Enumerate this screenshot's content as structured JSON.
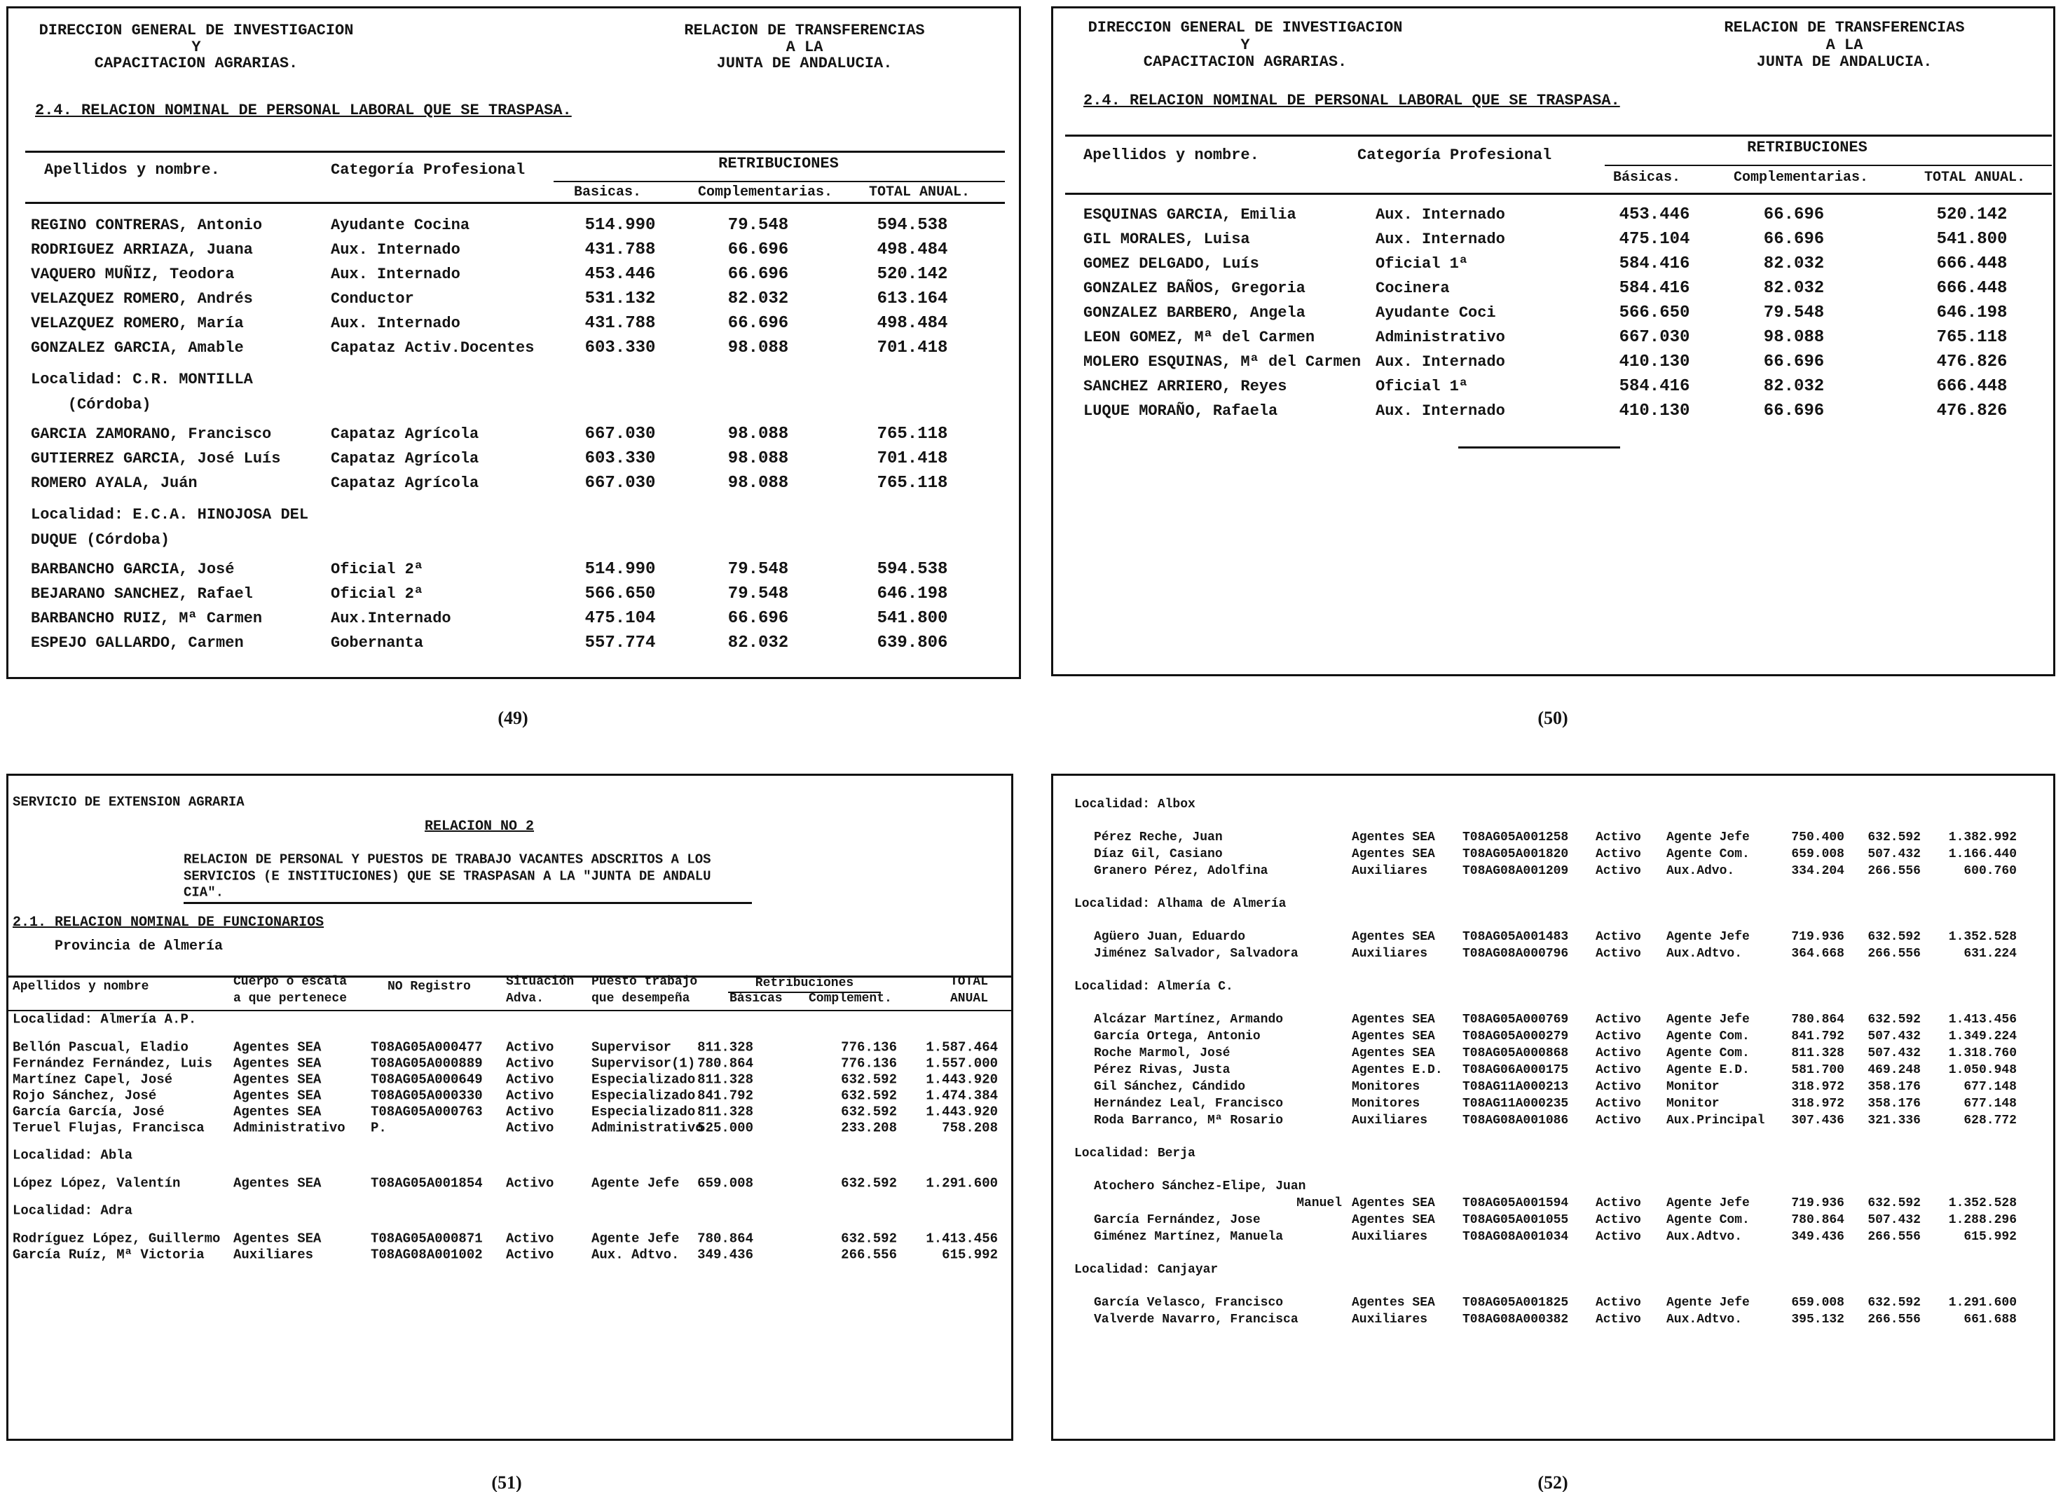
{
  "pages": [
    {
      "number": "(49)",
      "header": {
        "left": [
          "DIRECCION GENERAL DE INVESTIGACION",
          "Y",
          "CAPACITACION AGRARIAS."
        ],
        "right": [
          "RELACION DE TRANSFERENCIAS",
          "A LA",
          "JUNTA DE ANDALUCIA."
        ]
      },
      "section": "2.4. RELACION NOMINAL DE PERSONAL LABORAL QUE SE TRASPASA.",
      "columns": [
        "Apellidos y nombre.",
        "Categoría Profesional"
      ],
      "group": "RETRIBUCIONES",
      "sub": [
        "Basicas.",
        "Complementarias.",
        "TOTAL ANUAL."
      ],
      "rows": [
        {
          "cells": [
            "REGINO CONTRERAS, Antonio",
            "Ayudante Cocina",
            "514.990",
            "79.548",
            "594.538"
          ]
        },
        {
          "cells": [
            "RODRIGUEZ ARRIAZA, Juana",
            "Aux. Internado",
            "431.788",
            "66.696",
            "498.484"
          ]
        },
        {
          "cells": [
            "VAQUERO MUÑIZ, Teodora",
            "Aux. Internado",
            "453.446",
            "66.696",
            "520.142"
          ]
        },
        {
          "cells": [
            "VELAZQUEZ ROMERO, Andrés",
            "Conductor",
            "531.132",
            "82.032",
            "613.164"
          ]
        },
        {
          "cells": [
            "VELAZQUEZ ROMERO, María",
            "Aux. Internado",
            "431.788",
            "66.696",
            "498.484"
          ]
        },
        {
          "cells": [
            "GONZALEZ GARCIA, Amable",
            "Capataz Activ.Docentes",
            "603.330",
            "98.088",
            "701.418"
          ]
        },
        {
          "locality": [
            "Localidad: C.R. MONTILLA",
            "    (Córdoba)"
          ]
        },
        {
          "cells": [
            "GARCIA ZAMORANO, Francisco",
            "Capataz Agrícola",
            "667.030",
            "98.088",
            "765.118"
          ]
        },
        {
          "cells": [
            "GUTIERREZ GARCIA, José Luís",
            "Capataz Agrícola",
            "603.330",
            "98.088",
            "701.418"
          ]
        },
        {
          "cells": [
            "ROMERO AYALA, Juán",
            "Capataz Agrícola",
            "667.030",
            "98.088",
            "765.118"
          ]
        },
        {
          "locality": [
            "Localidad: E.C.A. HINOJOSA DEL",
            "DUQUE (Córdoba)"
          ]
        },
        {
          "cells": [
            "BARBANCHO GARCIA, José",
            "Oficial 2ª",
            "514.990",
            "79.548",
            "594.538"
          ]
        },
        {
          "cells": [
            "BEJARANO SANCHEZ, Rafael",
            "Oficial 2ª",
            "566.650",
            "79.548",
            "646.198"
          ]
        },
        {
          "cells": [
            "BARBANCHO RUIZ, Mª Carmen",
            "Aux.Internado",
            "475.104",
            "66.696",
            "541.800"
          ]
        },
        {
          "cells": [
            "ESPEJO GALLARDO, Carmen",
            "Gobernanta",
            "557.774",
            "82.032",
            "639.806"
          ]
        }
      ]
    },
    {
      "number": "(50)",
      "header": {
        "left": [
          "DIRECCION GENERAL DE INVESTIGACION",
          "Y",
          "CAPACITACION AGRARIAS."
        ],
        "right": [
          "RELACION DE TRANSFERENCIAS",
          "A LA",
          "JUNTA DE ANDALUCIA."
        ]
      },
      "section": "2.4. RELACION NOMINAL DE PERSONAL LABORAL QUE SE TRASPASA.",
      "columns": [
        "Apellidos y nombre.",
        "Categoría Profesional"
      ],
      "group": "RETRIBUCIONES",
      "sub": [
        "Básicas.",
        "Complementarias.",
        "TOTAL ANUAL."
      ],
      "rows": [
        {
          "cells": [
            "ESQUINAS GARCIA, Emilia",
            "Aux. Internado",
            "453.446",
            "66.696",
            "520.142"
          ]
        },
        {
          "cells": [
            "GIL MORALES, Luisa",
            "Aux. Internado",
            "475.104",
            "66.696",
            "541.800"
          ]
        },
        {
          "cells": [
            "GOMEZ DELGADO, Luís",
            "Oficial 1ª",
            "584.416",
            "82.032",
            "666.448"
          ]
        },
        {
          "cells": [
            "GONZALEZ BAÑOS, Gregoria",
            "Cocinera",
            "584.416",
            "82.032",
            "666.448"
          ]
        },
        {
          "cells": [
            "GONZALEZ BARBERO, Angela",
            "Ayudante Coci",
            "566.650",
            "79.548",
            "646.198"
          ]
        },
        {
          "cells": [
            "LEON GOMEZ, Mª del Carmen",
            "Administrativo",
            "667.030",
            "98.088",
            "765.118"
          ]
        },
        {
          "cells": [
            "MOLERO ESQUINAS, Mª del Carmen",
            "Aux. Internado",
            "410.130",
            "66.696",
            "476.826"
          ]
        },
        {
          "cells": [
            "SANCHEZ ARRIERO, Reyes",
            "Oficial 1ª",
            "584.416",
            "82.032",
            "666.448"
          ]
        },
        {
          "cells": [
            "LUQUE MORAÑO, Rafaela",
            "Aux. Internado",
            "410.130",
            "66.696",
            "476.826"
          ]
        }
      ]
    },
    {
      "number": "(51)",
      "header": {
        "office": "SERVICIO DE EXTENSION AGRARIA",
        "relation": "RELACION NO 2",
        "description": [
          "RELACION DE PERSONAL Y PUESTOS DE TRABAJO VACANTES ADSCRITOS A LOS",
          "SERVICIOS (E INSTITUCIONES) QUE SE TRASPASAN A LA \"JUNTA DE ANDALU",
          "CIA\"."
        ]
      },
      "section": "2.1. RELACION NOMINAL DE FUNCIONARIOS",
      "province": "Provincia de Almería",
      "columns": [
        "Apellidos y nombre",
        [
          "Cuerpo o escala",
          "a que pertenece"
        ],
        "NO Registro",
        [
          "Situación",
          "Adva."
        ],
        [
          "Puesto trabajo",
          "que desempeña"
        ],
        [
          "TOTAL",
          "ANUAL"
        ]
      ],
      "group": "Retribuciones",
      "sub": [
        "Básicas",
        "Complement."
      ],
      "rows": [
        {
          "locality": [
            "Localidad: Almería A.P."
          ]
        },
        {
          "cells": [
            "Bellón Pascual, Eladio",
            "Agentes SEA",
            "T08AG05A000477",
            "Activo",
            "Supervisor",
            "811.328",
            "776.136",
            "1.587.464"
          ]
        },
        {
          "cells": [
            "Fernández Fernández, Luis",
            "Agentes SEA",
            "T08AG05A000889",
            "Activo",
            "Supervisor(1)",
            "780.864",
            "776.136",
            "1.557.000"
          ]
        },
        {
          "cells": [
            "Martínez Capel, José",
            "Agentes SEA",
            "T08AG05A000649",
            "Activo",
            "Especializado",
            "811.328",
            "632.592",
            "1.443.920"
          ]
        },
        {
          "cells": [
            "Rojo Sánchez, José",
            "Agentes SEA",
            "T08AG05A000330",
            "Activo",
            "Especializado",
            "841.792",
            "632.592",
            "1.474.384"
          ]
        },
        {
          "cells": [
            "García García, José",
            "Agentes SEA",
            "T08AG05A000763",
            "Activo",
            "Especializado",
            "811.328",
            "632.592",
            "1.443.920"
          ]
        },
        {
          "cells": [
            "Teruel Flujas, Francisca",
            "Administrativo",
            "P.",
            "Activo",
            "Administrativo",
            "525.000",
            "233.208",
            "758.208"
          ]
        },
        {
          "locality": [
            "Localidad: Abla"
          ]
        },
        {
          "cells": [
            "López López, Valentín",
            "Agentes SEA",
            "T08AG05A001854",
            "Activo",
            "Agente Jefe",
            "659.008",
            "632.592",
            "1.291.600"
          ]
        },
        {
          "locality": [
            "Localidad: Adra"
          ]
        },
        {
          "cells": [
            "Rodríguez López, Guillermo",
            "Agentes SEA",
            "T08AG05A000871",
            "Activo",
            "Agente Jefe",
            "780.864",
            "632.592",
            "1.413.456"
          ]
        },
        {
          "cells": [
            "García Ruíz, Mª Victoria",
            "Auxiliares",
            "T08AG08A001002",
            "Activo",
            "Aux. Adtvo.",
            "349.436",
            "266.556",
            "615.992"
          ]
        }
      ]
    },
    {
      "number": "(52)",
      "rows": [
        {
          "locality": [
            "Localidad: Albox"
          ]
        },
        {
          "cells": [
            "Pérez Reche, Juan",
            "Agentes SEA",
            "T08AG05A001258",
            "Activo",
            "Agente Jefe",
            "750.400",
            "632.592",
            "1.382.992"
          ]
        },
        {
          "cells": [
            "Díaz Gil, Casiano",
            "Agentes SEA",
            "T08AG05A001820",
            "Activo",
            "Agente Com.",
            "659.008",
            "507.432",
            "1.166.440"
          ]
        },
        {
          "cells": [
            "Granero Pérez, Adolfina",
            "Auxiliares",
            "T08AG08A001209",
            "Activo",
            "Aux.Advo.",
            "334.204",
            "266.556",
            "600.760"
          ]
        },
        {
          "locality": [
            "Localidad: Alhama de Almería"
          ]
        },
        {
          "cells": [
            "Agüero Juan, Eduardo",
            "Agentes SEA",
            "T08AG05A001483",
            "Activo",
            "Agente Jefe",
            "719.936",
            "632.592",
            "1.352.528"
          ]
        },
        {
          "cells": [
            "Jiménez Salvador, Salvadora",
            "Auxiliares",
            "T08AG08A000796",
            "Activo",
            "Aux.Adtvo.",
            "364.668",
            "266.556",
            "631.224"
          ]
        },
        {
          "locality": [
            "Localidad: Almería C."
          ]
        },
        {
          "cells": [
            "Alcázar Martínez, Armando",
            "Agentes SEA",
            "T08AG05A000769",
            "Activo",
            "Agente Jefe",
            "780.864",
            "632.592",
            "1.413.456"
          ]
        },
        {
          "cells": [
            "García Ortega, Antonio",
            "Agentes SEA",
            "T08AG05A000279",
            "Activo",
            "Agente Com.",
            "841.792",
            "507.432",
            "1.349.224"
          ]
        },
        {
          "cells": [
            "Roche Marmol, José",
            "Agentes SEA",
            "T08AG05A000868",
            "Activo",
            "Agente Com.",
            "811.328",
            "507.432",
            "1.318.760"
          ]
        },
        {
          "cells": [
            "Pérez Rivas, Justa",
            "Agentes E.D.",
            "T08AG06A000175",
            "Activo",
            "Agente E.D.",
            "581.700",
            "469.248",
            "1.050.948"
          ]
        },
        {
          "cells": [
            "Gil Sánchez, Cándido",
            "Monitores",
            "T08AG11A000213",
            "Activo",
            "Monitor",
            "318.972",
            "358.176",
            "677.148"
          ]
        },
        {
          "cells": [
            "Hernández Leal, Francisco",
            "Monitores",
            "T08AG11A000235",
            "Activo",
            "Monitor",
            "318.972",
            "358.176",
            "677.148"
          ]
        },
        {
          "cells": [
            "Roda Barranco, Mª Rosario",
            "Auxiliares",
            "T08AG08A001086",
            "Activo",
            "Aux.Principal",
            "307.436",
            "321.336",
            "628.772"
          ]
        },
        {
          "locality": [
            "Localidad: Berja"
          ]
        },
        {
          "cells": [
            [
              "Atochero Sánchez-Elipe, Juan",
              "Manuel"
            ],
            "Agentes SEA",
            "T08AG05A001594",
            "Activo",
            "Agente Jefe",
            "719.936",
            "632.592",
            "1.352.528"
          ]
        },
        {
          "cells": [
            "García Fernández, Jose",
            "Agentes SEA",
            "T08AG05A001055",
            "Activo",
            "Agente Com.",
            "780.864",
            "507.432",
            "1.288.296"
          ]
        },
        {
          "cells": [
            "Giménez Martínez, Manuela",
            "Auxiliares",
            "T08AG08A001034",
            "Activo",
            "Aux.Adtvo.",
            "349.436",
            "266.556",
            "615.992"
          ]
        },
        {
          "locality": [
            "Localidad: Canjayar"
          ]
        },
        {
          "cells": [
            "García Velasco, Francisco",
            "Agentes SEA",
            "T08AG05A001825",
            "Activo",
            "Agente Jefe",
            "659.008",
            "632.592",
            "1.291.600"
          ]
        },
        {
          "cells": [
            "Valverde Navarro, Francisca",
            "Auxiliares",
            "T08AG08A000382",
            "Activo",
            "Aux.Adtvo.",
            "395.132",
            "266.556",
            "661.688"
          ]
        }
      ]
    }
  ]
}
